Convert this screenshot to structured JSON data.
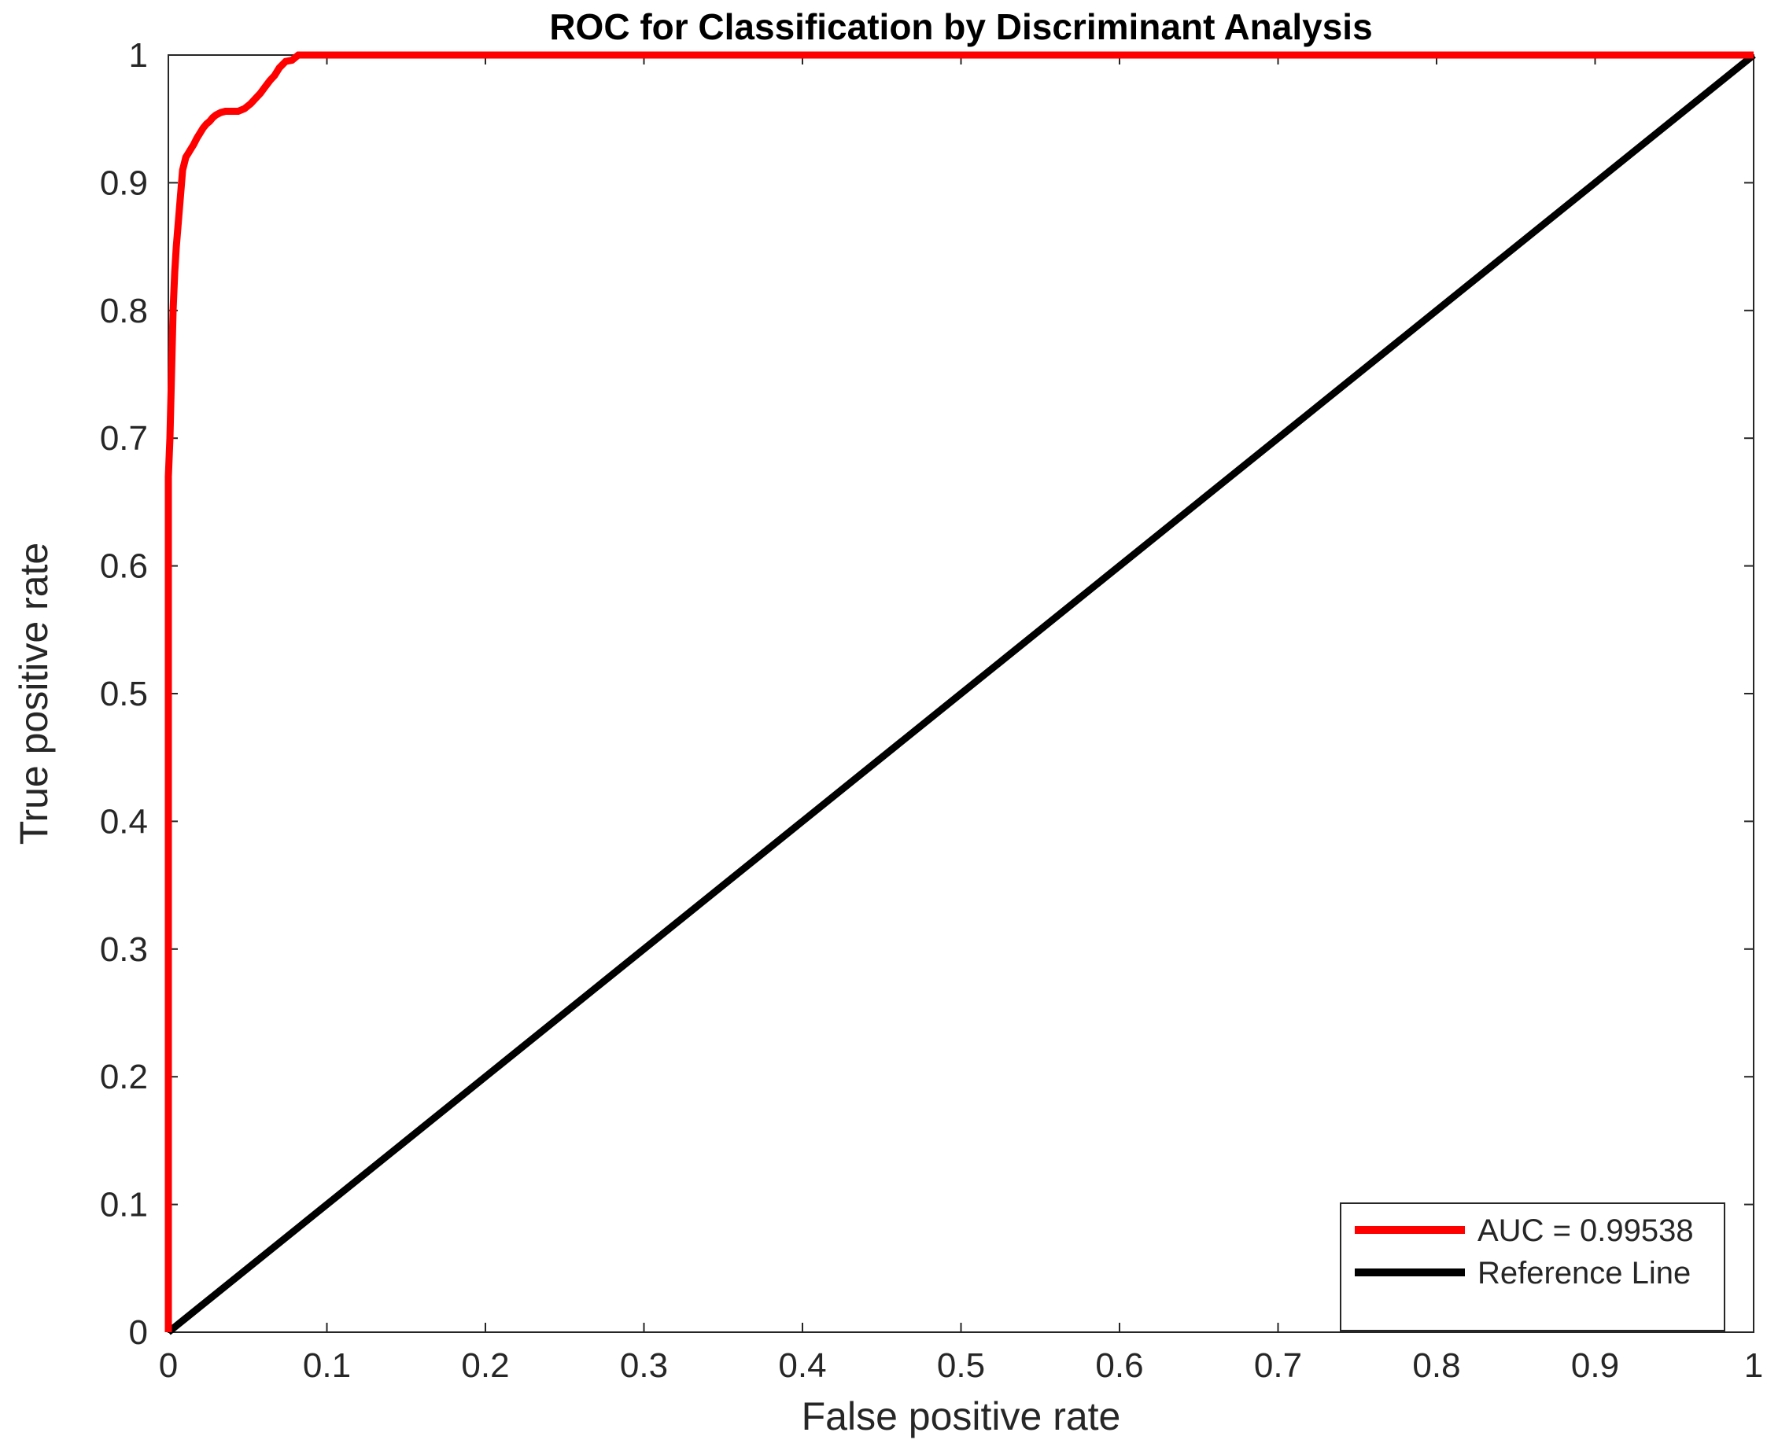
{
  "chart_data": {
    "type": "line",
    "title": "ROC for Classification by Discriminant Analysis",
    "xlabel": "False positive rate",
    "ylabel": "True positive rate",
    "xlim": [
      0,
      1
    ],
    "ylim": [
      0,
      1
    ],
    "xticks": [
      0,
      0.1,
      0.2,
      0.3,
      0.4,
      0.5,
      0.6,
      0.7,
      0.8,
      0.9,
      1
    ],
    "yticks": [
      0,
      0.1,
      0.2,
      0.3,
      0.4,
      0.5,
      0.6,
      0.7,
      0.8,
      0.9,
      1
    ],
    "xtick_labels": [
      "0",
      "0.1",
      "0.2",
      "0.3",
      "0.4",
      "0.5",
      "0.6",
      "0.7",
      "0.8",
      "0.9",
      "1"
    ],
    "ytick_labels": [
      "0",
      "0.1",
      "0.2",
      "0.3",
      "0.4",
      "0.5",
      "0.6",
      "0.7",
      "0.8",
      "0.9",
      "1"
    ],
    "grid": false,
    "legend_position": "bottom-right",
    "series": [
      {
        "name": "AUC = 0.99538",
        "color": "#ff0000",
        "x": [
          0,
          0,
          0.001,
          0.002,
          0.003,
          0.004,
          0.005,
          0.006,
          0.007,
          0.008,
          0.009,
          0.01,
          0.011,
          0.012,
          0.014,
          0.016,
          0.018,
          0.02,
          0.022,
          0.024,
          0.026,
          0.028,
          0.03,
          0.033,
          0.036,
          0.04,
          0.044,
          0.048,
          0.052,
          0.055,
          0.058,
          0.061,
          0.064,
          0.067,
          0.07,
          0.074,
          0.078,
          0.082,
          1
        ],
        "y": [
          0,
          0.67,
          0.7,
          0.75,
          0.8,
          0.83,
          0.85,
          0.865,
          0.88,
          0.895,
          0.91,
          0.915,
          0.92,
          0.922,
          0.926,
          0.93,
          0.935,
          0.939,
          0.943,
          0.946,
          0.948,
          0.951,
          0.953,
          0.955,
          0.956,
          0.956,
          0.956,
          0.958,
          0.962,
          0.966,
          0.97,
          0.975,
          0.98,
          0.984,
          0.99,
          0.995,
          0.996,
          1,
          1
        ]
      },
      {
        "name": "Reference Line",
        "color": "#000000",
        "x": [
          0,
          1
        ],
        "y": [
          0,
          1
        ]
      }
    ]
  }
}
